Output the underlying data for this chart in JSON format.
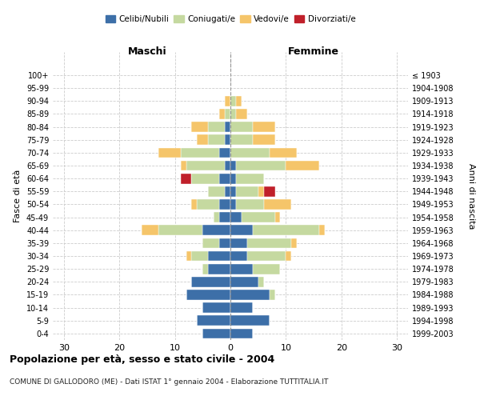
{
  "age_groups": [
    "0-4",
    "5-9",
    "10-14",
    "15-19",
    "20-24",
    "25-29",
    "30-34",
    "35-39",
    "40-44",
    "45-49",
    "50-54",
    "55-59",
    "60-64",
    "65-69",
    "70-74",
    "75-79",
    "80-84",
    "85-89",
    "90-94",
    "95-99",
    "100+"
  ],
  "birth_years": [
    "1999-2003",
    "1994-1998",
    "1989-1993",
    "1984-1988",
    "1979-1983",
    "1974-1978",
    "1969-1973",
    "1964-1968",
    "1959-1963",
    "1954-1958",
    "1949-1953",
    "1944-1948",
    "1939-1943",
    "1934-1938",
    "1929-1933",
    "1924-1928",
    "1919-1923",
    "1914-1918",
    "1909-1913",
    "1904-1908",
    "≤ 1903"
  ],
  "colors": {
    "celibe": "#3d6fa8",
    "coniugato": "#c5d9a0",
    "vedovo": "#f5c56a",
    "divorziato": "#c0202a"
  },
  "maschi": {
    "celibe": [
      5,
      6,
      5,
      8,
      7,
      4,
      4,
      2,
      5,
      2,
      2,
      1,
      2,
      1,
      2,
      1,
      1,
      0,
      0,
      0,
      0
    ],
    "coniugato": [
      0,
      0,
      0,
      0,
      0,
      1,
      3,
      3,
      8,
      1,
      4,
      3,
      5,
      7,
      7,
      3,
      3,
      1,
      0,
      0,
      0
    ],
    "vedovo": [
      0,
      0,
      0,
      0,
      0,
      0,
      1,
      0,
      3,
      0,
      1,
      0,
      0,
      1,
      4,
      2,
      3,
      1,
      1,
      0,
      0
    ],
    "divorziato": [
      0,
      0,
      0,
      0,
      0,
      0,
      0,
      0,
      0,
      0,
      0,
      0,
      2,
      0,
      0,
      0,
      0,
      0,
      0,
      0,
      0
    ]
  },
  "femmine": {
    "nubile": [
      4,
      7,
      4,
      7,
      5,
      4,
      3,
      3,
      4,
      2,
      1,
      1,
      1,
      1,
      0,
      0,
      0,
      0,
      0,
      0,
      0
    ],
    "coniugata": [
      0,
      0,
      0,
      1,
      1,
      5,
      7,
      8,
      12,
      6,
      5,
      4,
      5,
      9,
      7,
      4,
      4,
      1,
      1,
      0,
      0
    ],
    "vedova": [
      0,
      0,
      0,
      0,
      0,
      0,
      1,
      1,
      1,
      1,
      5,
      1,
      0,
      6,
      5,
      4,
      4,
      2,
      1,
      0,
      0
    ],
    "divorziata": [
      0,
      0,
      0,
      0,
      0,
      0,
      0,
      0,
      0,
      0,
      0,
      2,
      0,
      0,
      0,
      0,
      0,
      0,
      0,
      0,
      0
    ]
  },
  "xlim": 32,
  "xticks": [
    -30,
    -20,
    -10,
    0,
    10,
    20,
    30
  ],
  "title": "Popolazione per età, sesso e stato civile - 2004",
  "subtitle": "COMUNE DI GALLODORO (ME) - Dati ISTAT 1° gennaio 2004 - Elaborazione TUTTITALIA.IT",
  "ylabel_left": "Fasce di età",
  "ylabel_right": "Anni di nascita",
  "maschi_label": "Maschi",
  "femmine_label": "Femmine",
  "legend_labels": [
    "Celibi/Nubili",
    "Coniugati/e",
    "Vedovi/e",
    "Divorziati/e"
  ]
}
